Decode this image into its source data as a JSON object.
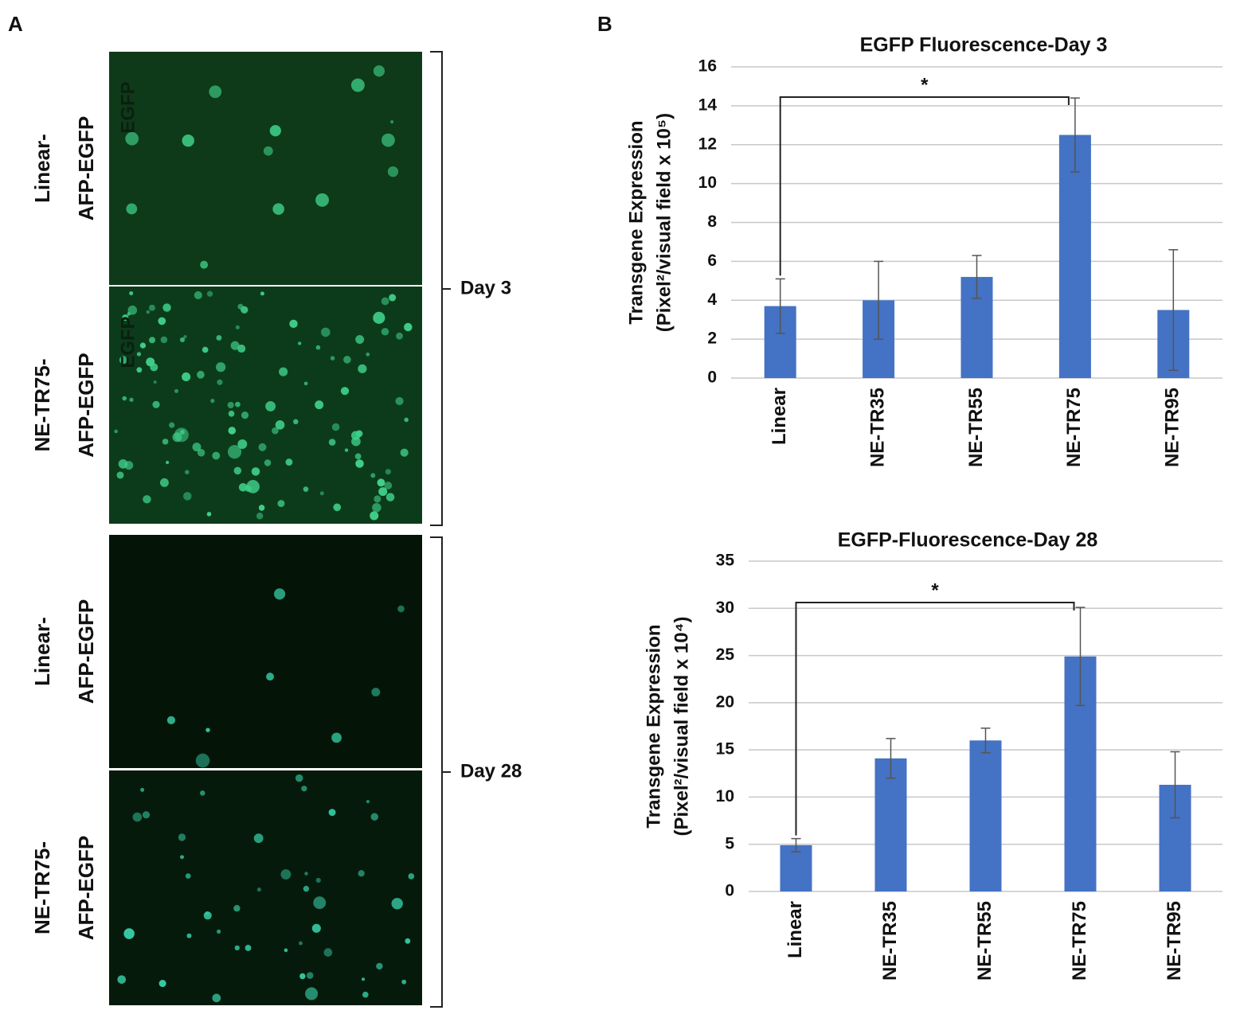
{
  "panel_a": {
    "label": "A",
    "rows": [
      {
        "lines": [
          "Linear-",
          "AFP-EGFP"
        ],
        "overlay": "EGFP"
      },
      {
        "lines": [
          "NE-TR75-",
          "AFP-EGFP"
        ],
        "overlay": "EGFP"
      },
      {
        "lines": [
          "Linear-",
          "AFP-EGFP"
        ]
      },
      {
        "lines": [
          "NE-TR75-",
          "AFP-EGFP"
        ]
      }
    ],
    "groups": [
      "Day 3",
      "Day 28"
    ]
  },
  "panel_b": {
    "label": "B"
  },
  "chart_data": [
    {
      "type": "bar",
      "title": "EGFP Fluorescence-Day 3",
      "y_label": [
        "Transgene Expression",
        "(Pixel²/visual field x 10⁵)"
      ],
      "categories": [
        "Linear",
        "NE-TR35",
        "NE-TR55",
        "NE-TR75",
        "NE-TR95"
      ],
      "series": [
        {
          "color": "#4472c4",
          "values": [
            3.7,
            4.0,
            5.2,
            12.5,
            3.5
          ],
          "errors": [
            1.4,
            2.0,
            1.1,
            1.9,
            3.1
          ]
        }
      ],
      "ylim": [
        0,
        16
      ],
      "yticks": [
        0,
        2,
        4,
        6,
        8,
        10,
        12,
        14,
        16
      ],
      "grid": true,
      "annotation": "*"
    },
    {
      "type": "bar",
      "title": "EGFP-Fluorescence-Day 28",
      "y_label": [
        "Transgene Expression",
        "(Pixel²/visual field x 10⁴)"
      ],
      "categories": [
        "Linear",
        "NE-TR35",
        "NE-TR55",
        "NE-TR75",
        "NE-TR95"
      ],
      "series": [
        {
          "color": "#4472c4",
          "values": [
            4.9,
            14.1,
            16.0,
            24.9,
            11.3
          ],
          "errors": [
            0.7,
            2.1,
            1.3,
            5.2,
            3.5
          ]
        }
      ],
      "ylim": [
        0,
        35
      ],
      "yticks": [
        0,
        5,
        10,
        15,
        20,
        25,
        30,
        35
      ],
      "grid": true,
      "annotation": "*"
    }
  ]
}
